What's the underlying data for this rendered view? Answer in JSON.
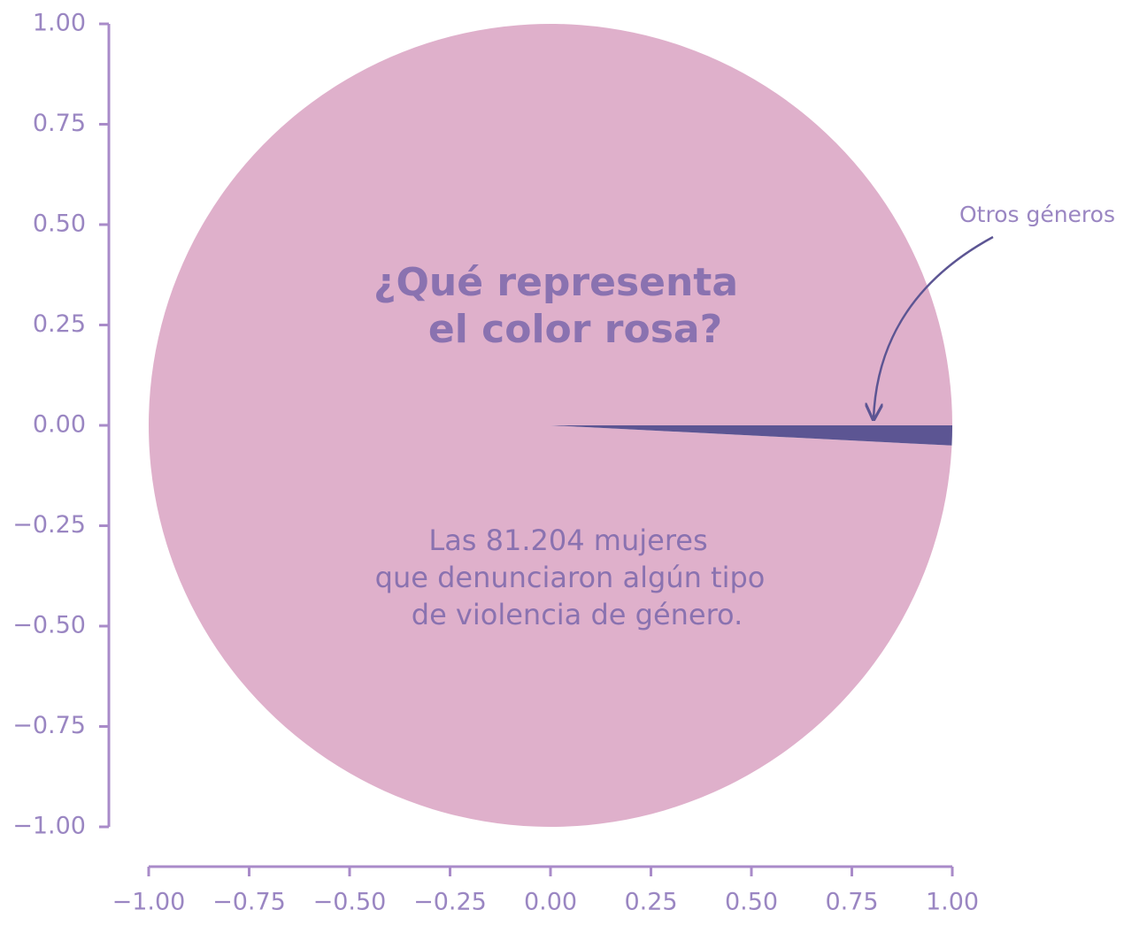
{
  "chart_data": {
    "type": "pie",
    "categories": [
      null,
      "Otros géneros"
    ],
    "values": [
      99.2,
      0.8
    ],
    "colors": [
      "#dfb0cb",
      "#5c5593"
    ],
    "start_angle": 0,
    "counterclock": true,
    "center_title": [
      "¿Qué representa",
      "el color rosa?"
    ],
    "center_text": [
      "Las 81.204 mujeres",
      "que denunciaron algún tipo",
      "de violencia de género."
    ],
    "xlim": [
      -1,
      1
    ],
    "ylim": [
      -1,
      1
    ],
    "xticks": [
      {
        "value": -1,
        "label": "−1.00"
      },
      {
        "value": -0.75,
        "label": "−0.75"
      },
      {
        "value": -0.5,
        "label": "−0.50"
      },
      {
        "value": -0.25,
        "label": "−0.25"
      },
      {
        "value": 0,
        "label": "0.00"
      },
      {
        "value": 0.25,
        "label": "0.25"
      },
      {
        "value": 0.5,
        "label": "0.50"
      },
      {
        "value": 0.75,
        "label": "0.75"
      },
      {
        "value": 1,
        "label": "1.00"
      }
    ],
    "yticks": [
      {
        "value": -1,
        "label": "−1.00"
      },
      {
        "value": -0.75,
        "label": "−0.75"
      },
      {
        "value": -0.5,
        "label": "−0.50"
      },
      {
        "value": -0.25,
        "label": "−0.25"
      },
      {
        "value": 0,
        "label": "0.00"
      },
      {
        "value": 0.25,
        "label": "0.25"
      },
      {
        "value": 0.5,
        "label": "0.50"
      },
      {
        "value": 0.75,
        "label": "0.75"
      },
      {
        "value": 1,
        "label": "1.00"
      }
    ]
  }
}
